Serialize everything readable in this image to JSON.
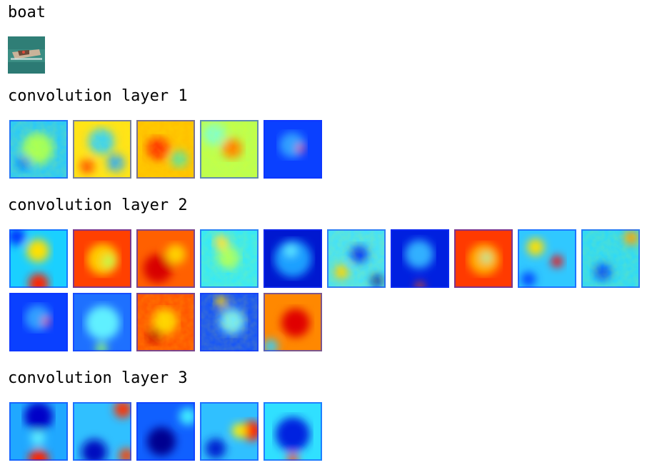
{
  "image": {
    "class_label": "boat"
  },
  "layers": [
    {
      "title": "convolution layer 1",
      "maps": [
        "edge-a",
        "edge-b",
        "edge-c",
        "edge-d",
        "blue-spot"
      ]
    },
    {
      "title": "convolution layer 2",
      "maps": [
        "cyan-bottom-red",
        "red-frame",
        "red-core",
        "cyan-flat",
        "blue-bright",
        "mixed-a",
        "blue-dark",
        "red-hot",
        "cyan-spot",
        "cyan-warm",
        "blue-spot",
        "blue-soft",
        "red-noisy",
        "blue-noisy",
        "red-warm"
      ]
    },
    {
      "title": "convolution layer 3",
      "maps": [
        "blue-bottom-red",
        "blue-s",
        "blue-corner",
        "cyan-red-right",
        "blue-cyan"
      ]
    }
  ],
  "colors": {
    "jet_low": "#0000ff",
    "jet_mid": "#00ffff",
    "jet_high": "#ff0000",
    "water": "#3a8d83"
  }
}
